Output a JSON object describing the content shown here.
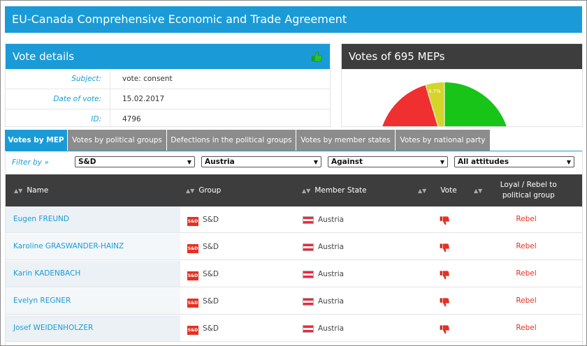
{
  "page_title": "EU-Canada Comprehensive Economic and Trade Agreement",
  "vote_details": {
    "heading": "Vote details",
    "icon": "thumb-up-icon",
    "rows": [
      {
        "label": "Subject:",
        "value": "vote: consent"
      },
      {
        "label": "Date of vote:",
        "value": "15.02.2017"
      },
      {
        "label": "ID:",
        "value": "4796"
      }
    ]
  },
  "mep_votes": {
    "heading": "Votes of 695 MEPs",
    "slice_label": "4.7%",
    "colors": {
      "for": "#18c418",
      "against": "#f03030",
      "abstain": "#d4d42a"
    }
  },
  "tabs": [
    {
      "label": "Votes by MEP",
      "active": true
    },
    {
      "label": "Votes by political groups",
      "active": false
    },
    {
      "label": "Defections in the political groups",
      "active": false
    },
    {
      "label": "Votes by member states",
      "active": false
    },
    {
      "label": "Votes by national party",
      "active": false
    }
  ],
  "filter": {
    "label": "Filter by »",
    "selects": [
      "S&D",
      "Austria",
      "Against",
      "All attitudes"
    ]
  },
  "table": {
    "headers": [
      "Name",
      "Group",
      "Member State",
      "Vote",
      "Loyal / Rebel to political group"
    ],
    "rows": [
      {
        "name": "Eugen FREUND",
        "group": "S&D",
        "state": "Austria",
        "vote": "thumb-down-icon",
        "loyalty": "Rebel"
      },
      {
        "name": "Karoline GRASWANDER-HAINZ",
        "group": "S&D",
        "state": "Austria",
        "vote": "thumb-down-icon",
        "loyalty": "Rebel"
      },
      {
        "name": "Karin KADENBACH",
        "group": "S&D",
        "state": "Austria",
        "vote": "thumb-down-icon",
        "loyalty": "Rebel"
      },
      {
        "name": "Evelyn REGNER",
        "group": "S&D",
        "state": "Austria",
        "vote": "thumb-down-icon",
        "loyalty": "Rebel"
      },
      {
        "name": "Josef WEIDENHOLZER",
        "group": "S&D",
        "state": "Austria",
        "vote": "thumb-down-icon",
        "loyalty": "Rebel"
      }
    ]
  },
  "colors": {
    "primary": "#1a9bd7",
    "header_dark": "#3d3d3d",
    "rebel": "#e53022"
  }
}
